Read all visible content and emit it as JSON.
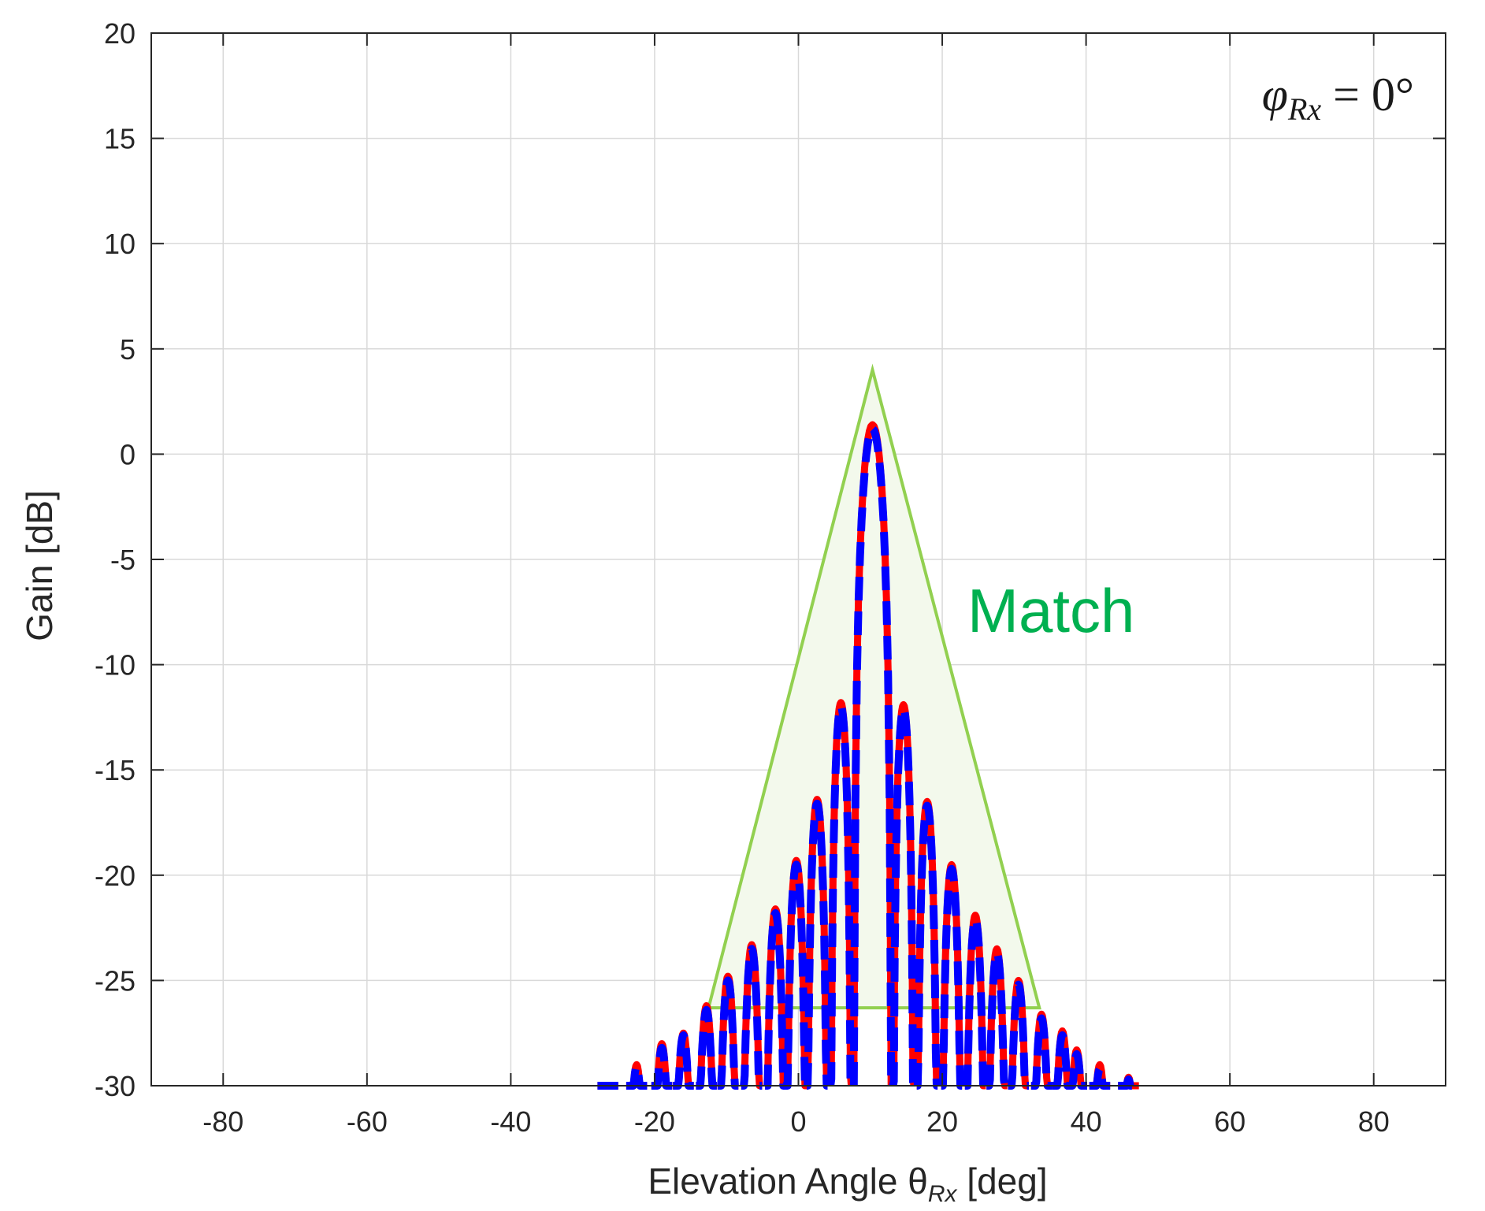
{
  "chart_data": {
    "type": "line",
    "title": "",
    "xlabel": "Elevation Angle θ",
    "xlabel_sub": "Rx",
    "xlabel_unit": " [deg]",
    "ylabel": "Gain [dB]",
    "xlim": [
      -90,
      90
    ],
    "ylim": [
      -30,
      20
    ],
    "xticks": [
      -80,
      -60,
      -40,
      -20,
      0,
      20,
      40,
      60,
      80
    ],
    "yticks": [
      -30,
      -25,
      -20,
      -15,
      -10,
      -5,
      0,
      5,
      10,
      15,
      20
    ],
    "grid": true,
    "annotation": {
      "text_main": "φ",
      "text_sub": "Rx",
      "text_rest": " = 0°"
    },
    "match_label": "Match",
    "colors": {
      "series_solid": "#ff0000",
      "series_dashed": "#0000ff",
      "match": "#92d050",
      "match_fill": "#f3f9ec",
      "match_text": "#00b050"
    },
    "match_triangle": {
      "apex": [
        10.3,
        4.0
      ],
      "base_left": [
        -12.5,
        -26.3
      ],
      "base_right": [
        33.5,
        -26.3
      ]
    },
    "series": [
      {
        "style": "solid",
        "color": "#ff0000",
        "main_lobe": {
          "x": 10.3,
          "peak": 1.4
        },
        "lobes": [
          {
            "x": -26.5,
            "peak": -30
          },
          {
            "x": -22.5,
            "peak": -29.0
          },
          {
            "x": -19.0,
            "peak": -28.0
          },
          {
            "x": -16.0,
            "peak": -27.5
          },
          {
            "x": -12.8,
            "peak": -26.2
          },
          {
            "x": -9.8,
            "peak": -24.8
          },
          {
            "x": -6.5,
            "peak": -23.3
          },
          {
            "x": -3.2,
            "peak": -21.6
          },
          {
            "x": -0.3,
            "peak": -19.3
          },
          {
            "x": 2.6,
            "peak": -16.4
          },
          {
            "x": 5.9,
            "peak": -11.8
          },
          {
            "x": 14.6,
            "peak": -11.9
          },
          {
            "x": 17.9,
            "peak": -16.5
          },
          {
            "x": 21.3,
            "peak": -19.5
          },
          {
            "x": 24.6,
            "peak": -21.9
          },
          {
            "x": 27.6,
            "peak": -23.5
          },
          {
            "x": 30.6,
            "peak": -25.0
          },
          {
            "x": 33.8,
            "peak": -26.6
          },
          {
            "x": 36.7,
            "peak": -27.4
          },
          {
            "x": 38.7,
            "peak": -28.3
          },
          {
            "x": 41.9,
            "peak": -29.0
          },
          {
            "x": 45.9,
            "peak": -29.6
          }
        ]
      },
      {
        "style": "dashed",
        "color": "#0000ff",
        "main_lobe": {
          "x": 10.3,
          "peak": 1.2
        },
        "lobes": [
          {
            "x": -26.5,
            "peak": -30
          },
          {
            "x": -22.5,
            "peak": -29.1
          },
          {
            "x": -19.0,
            "peak": -28.2
          },
          {
            "x": -16.0,
            "peak": -27.6
          },
          {
            "x": -12.8,
            "peak": -26.4
          },
          {
            "x": -9.8,
            "peak": -25.0
          },
          {
            "x": -6.5,
            "peak": -23.5
          },
          {
            "x": -3.2,
            "peak": -21.8
          },
          {
            "x": -0.3,
            "peak": -19.5
          },
          {
            "x": 2.6,
            "peak": -16.6
          },
          {
            "x": 5.9,
            "peak": -12.0
          },
          {
            "x": 14.6,
            "peak": -12.1
          },
          {
            "x": 17.9,
            "peak": -16.7
          },
          {
            "x": 21.3,
            "peak": -19.7
          },
          {
            "x": 24.6,
            "peak": -22.1
          },
          {
            "x": 27.6,
            "peak": -23.7
          },
          {
            "x": 30.6,
            "peak": -25.2
          },
          {
            "x": 33.8,
            "peak": -26.8
          },
          {
            "x": 36.7,
            "peak": -27.6
          },
          {
            "x": 38.7,
            "peak": -28.5
          },
          {
            "x": 41.9,
            "peak": -29.2
          },
          {
            "x": 45.9,
            "peak": -29.7
          }
        ]
      }
    ]
  }
}
